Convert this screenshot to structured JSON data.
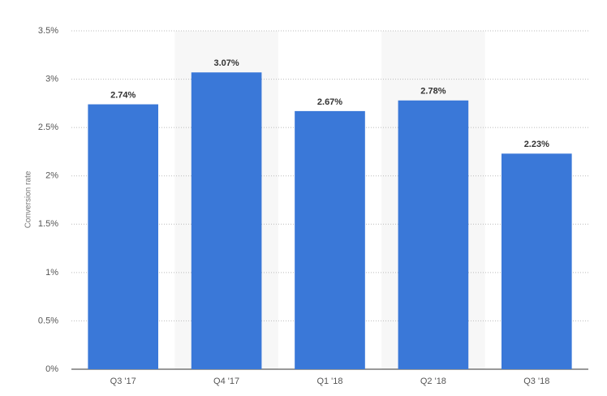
{
  "chart_data": {
    "type": "bar",
    "y_label": "Conversion rate",
    "categories": [
      "Q3 '17",
      "Q4 '17",
      "Q1 '18",
      "Q2 '18",
      "Q3 '18"
    ],
    "values": [
      2.74,
      3.07,
      2.67,
      2.78,
      2.23
    ],
    "value_labels": [
      "2.74%",
      "3.07%",
      "2.67%",
      "2.78%",
      "2.23%"
    ],
    "color": "#3a78d8",
    "ylim": [
      0,
      3.5
    ],
    "yticks": [
      {
        "value": 0,
        "label": "0%"
      },
      {
        "value": 0.5,
        "label": "0.5%"
      },
      {
        "value": 1,
        "label": "1%"
      },
      {
        "value": 1.5,
        "label": "1.5%"
      },
      {
        "value": 2,
        "label": "2%"
      },
      {
        "value": 2.5,
        "label": "2.5%"
      },
      {
        "value": 3,
        "label": "3%"
      },
      {
        "value": 3.5,
        "label": "3.5%"
      }
    ],
    "grid": true
  }
}
